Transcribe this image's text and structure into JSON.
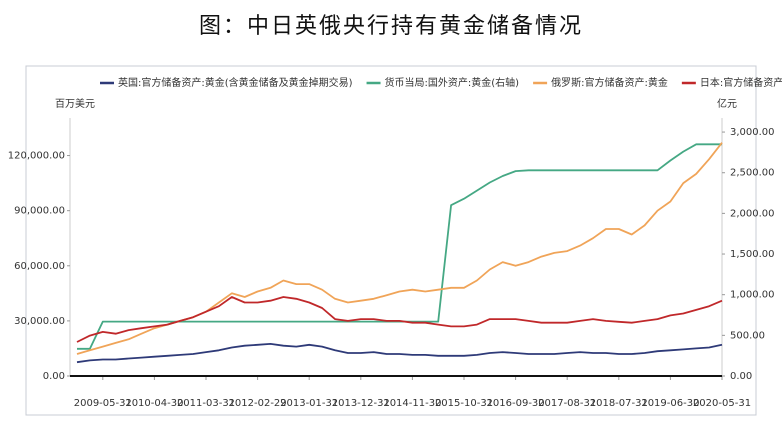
{
  "chart_data": {
    "type": "line",
    "title": "图：中日英俄央行持有黄金储备情况",
    "y_label": "百万美元",
    "y2_label": "亿元",
    "legend": "top",
    "categories": [
      null,
      null,
      "2009-05-31",
      null,
      null,
      null,
      "2010-04-30",
      null,
      null,
      null,
      "2011-03-31",
      null,
      null,
      null,
      "2012-02-29",
      null,
      null,
      null,
      "2013-01-31",
      null,
      null,
      null,
      "2013-12-31",
      null,
      null,
      null,
      "2014-11-30",
      null,
      null,
      null,
      "2015-10-31",
      null,
      null,
      null,
      "2016-09-30",
      null,
      null,
      null,
      "2017-08-31",
      null,
      null,
      null,
      "2018-07-31",
      null,
      null,
      null,
      "2019-06-30",
      null,
      null,
      null,
      "2020-05-31"
    ],
    "ylim": [
      0,
      135000
    ],
    "yticks": [
      {
        "value": 0,
        "label": "0.00"
      },
      {
        "value": 30000,
        "label": "30,000.00"
      },
      {
        "value": 60000,
        "label": "60,000.00"
      },
      {
        "value": 90000,
        "label": "90,000.00"
      },
      {
        "value": 120000,
        "label": "120,000.00"
      }
    ],
    "y2lim": [
      0,
      3050
    ],
    "y2ticks": [
      {
        "value": 0,
        "label": "0.00"
      },
      {
        "value": 500,
        "label": "500.00"
      },
      {
        "value": 1000,
        "label": "1,000.00"
      },
      {
        "value": 1500,
        "label": "1,500.00"
      },
      {
        "value": 2000,
        "label": "2,000.00"
      },
      {
        "value": 2500,
        "label": "2,500.00"
      },
      {
        "value": 3000,
        "label": "3,000.00"
      }
    ],
    "series": [
      {
        "name": "英国:官方储备资产:黄金(含黄金储备及黄金掉期交易)",
        "color": "#2e3a78",
        "values": [
          7500,
          8500,
          9000,
          9000,
          9500,
          10000,
          10500,
          11000,
          11500,
          12000,
          13000,
          14000,
          15500,
          16500,
          17000,
          17500,
          16500,
          16000,
          17000,
          16000,
          14000,
          12500,
          12500,
          13000,
          12000,
          12000,
          11500,
          11500,
          11000,
          11000,
          11000,
          11500,
          12500,
          13000,
          12500,
          12000,
          12000,
          12000,
          12500,
          13000,
          12500,
          12500,
          12000,
          12000,
          12500,
          13500,
          14000,
          14500,
          15000,
          15500,
          17000
        ]
      },
      {
        "name": "货币当局:国外资产:黄金(右轴)",
        "color": "#45a884",
        "axis": "y2",
        "values": [
          335,
          335,
          669,
          669,
          669,
          669,
          669,
          669,
          669,
          669,
          669,
          669,
          669,
          669,
          669,
          669,
          669,
          669,
          669,
          669,
          669,
          669,
          669,
          669,
          669,
          669,
          669,
          669,
          669,
          2100,
          2180,
          2280,
          2380,
          2460,
          2520,
          2530,
          2530,
          2530,
          2530,
          2530,
          2530,
          2530,
          2530,
          2530,
          2530,
          2530,
          2650,
          2760,
          2850,
          2850,
          2850
        ]
      },
      {
        "name": "俄罗斯:官方储备资产:黄金",
        "color": "#f0a458",
        "values": [
          12000,
          14000,
          16000,
          18000,
          20000,
          23000,
          26000,
          28000,
          30000,
          32000,
          35000,
          40000,
          45000,
          43000,
          46000,
          48000,
          52000,
          50000,
          50000,
          47000,
          42000,
          40000,
          41000,
          42000,
          44000,
          46000,
          47000,
          46000,
          47000,
          48000,
          48000,
          52000,
          58000,
          62000,
          60000,
          62000,
          65000,
          67000,
          68000,
          71000,
          75000,
          80000,
          80000,
          77000,
          82000,
          90000,
          95000,
          105000,
          110000,
          118000,
          127000
        ]
      },
      {
        "name": "日本:官方储备资产:黄金",
        "color": "#c0282a",
        "values": [
          18500,
          22000,
          24000,
          23000,
          25000,
          26000,
          27000,
          28000,
          30000,
          32000,
          35000,
          38000,
          43000,
          40000,
          40000,
          41000,
          43000,
          42000,
          40000,
          37000,
          31000,
          30000,
          31000,
          31000,
          30000,
          30000,
          29000,
          29000,
          28000,
          27000,
          27000,
          28000,
          31000,
          31000,
          31000,
          30000,
          29000,
          29000,
          29000,
          30000,
          31000,
          30000,
          29500,
          29000,
          30000,
          31000,
          33000,
          34000,
          36000,
          38000,
          41000
        ]
      }
    ]
  }
}
